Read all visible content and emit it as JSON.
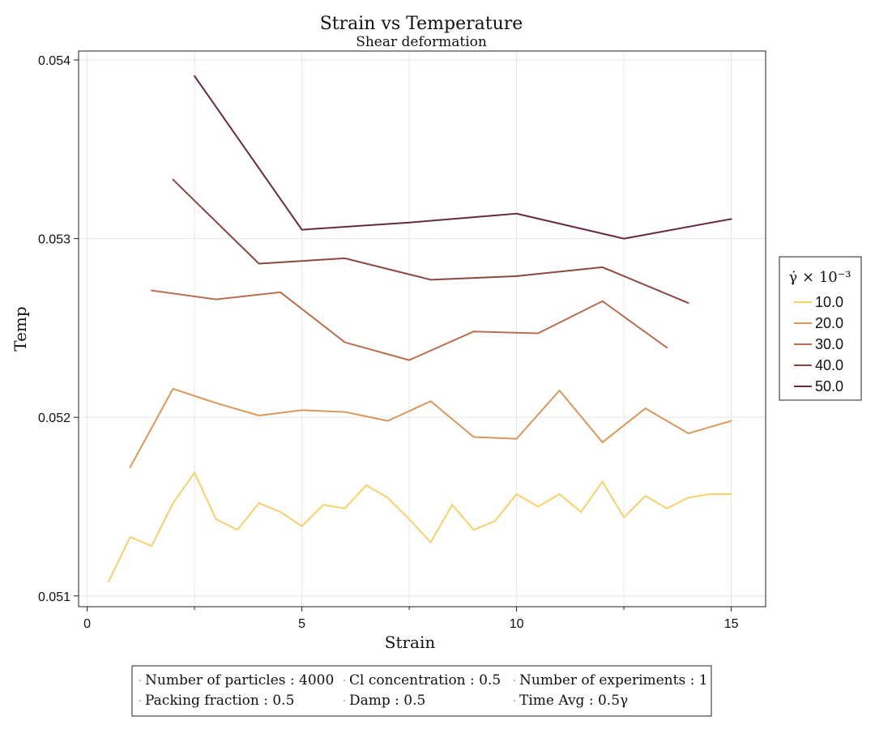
{
  "chart_data": {
    "type": "line",
    "title": "Strain vs Temperature",
    "subtitle": "Shear deformation",
    "xlabel": "Strain",
    "ylabel": "Temp",
    "xlim": [
      -0.2,
      15.8
    ],
    "ylim": [
      0.05094,
      0.05405
    ],
    "xticks": [
      0,
      5,
      10,
      15
    ],
    "xtick_labels": [
      "0",
      "5",
      "10",
      "15"
    ],
    "yticks": [
      0.051,
      0.052,
      0.053,
      0.054
    ],
    "ytick_labels": [
      "0.051",
      "0.052",
      "0.053",
      "0.054"
    ],
    "grid": true,
    "legend": {
      "title": "γ̇ × 10⁻³",
      "placement": "right"
    },
    "series": [
      {
        "name": "10.0",
        "color": "#f6d06d",
        "x": [
          0.5,
          1.0,
          1.5,
          2.0,
          2.5,
          3.0,
          3.5,
          4.0,
          4.5,
          5.0,
          5.5,
          6.0,
          6.5,
          7.0,
          7.5,
          8.0,
          8.5,
          9.0,
          9.5,
          10.0,
          10.5,
          11.0,
          11.5,
          12.0,
          12.5,
          13.0,
          13.5,
          14.0,
          14.5,
          15.0
        ],
        "y": [
          0.05108,
          0.05133,
          0.05128,
          0.05152,
          0.05169,
          0.05143,
          0.05137,
          0.05152,
          0.05147,
          0.05139,
          0.05151,
          0.05149,
          0.05162,
          0.05155,
          0.05143,
          0.0513,
          0.05151,
          0.05137,
          0.05142,
          0.05157,
          0.0515,
          0.05157,
          0.05147,
          0.05164,
          0.05144,
          0.05156,
          0.05149,
          0.05155,
          0.05157,
          0.05157
        ]
      },
      {
        "name": "20.0",
        "color": "#d9985a",
        "x": [
          1,
          2,
          3,
          4,
          5,
          6,
          7,
          8,
          9,
          10,
          11,
          12,
          13,
          14,
          15
        ],
        "y": [
          0.05172,
          0.05216,
          0.05208,
          0.05201,
          0.05204,
          0.05203,
          0.05198,
          0.05209,
          0.05189,
          0.05188,
          0.05215,
          0.05186,
          0.05205,
          0.05191,
          0.05198
        ]
      },
      {
        "name": "30.0",
        "color": "#b86e4f",
        "x": [
          1.5,
          3.0,
          4.5,
          6.0,
          7.5,
          9.0,
          10.5,
          12.0,
          13.5
        ],
        "y": [
          0.05271,
          0.05266,
          0.0527,
          0.05242,
          0.05232,
          0.05248,
          0.05247,
          0.05265,
          0.05239
        ]
      },
      {
        "name": "40.0",
        "color": "#8c4741",
        "x": [
          2,
          4,
          6,
          8,
          10,
          12,
          14
        ],
        "y": [
          0.05333,
          0.05286,
          0.05289,
          0.05277,
          0.05279,
          0.05284,
          0.05264
        ]
      },
      {
        "name": "50.0",
        "color": "#662b3c",
        "x": [
          2.5,
          5.0,
          7.5,
          10.0,
          12.5,
          15.0
        ],
        "y": [
          0.05391,
          0.05305,
          0.05309,
          0.05314,
          0.053,
          0.05311
        ]
      }
    ]
  },
  "info_box": {
    "row1": [
      "Number of particles : 4000",
      "Cl concentration : 0.5",
      "Number of experiments : 1"
    ],
    "row2": [
      "Packing fraction : 0.5",
      "Damp : 0.5",
      "Time Avg : 0.5γ"
    ]
  }
}
